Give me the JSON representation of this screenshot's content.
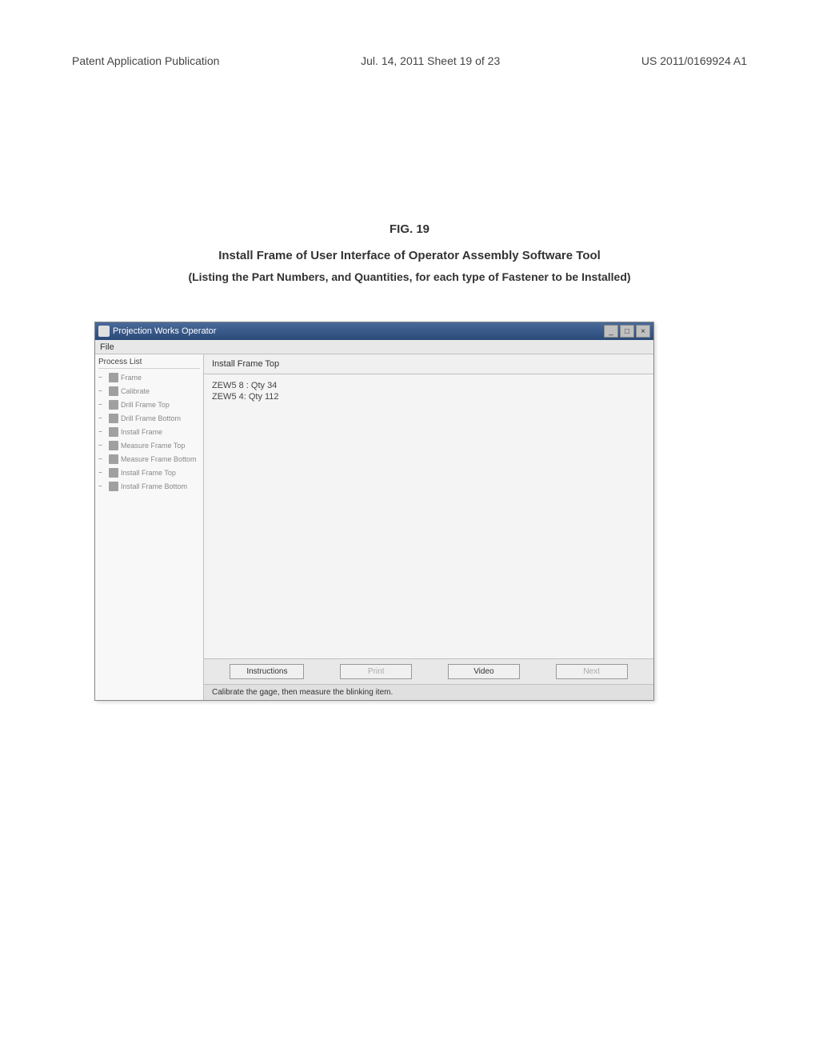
{
  "page_header": {
    "left": "Patent Application Publication",
    "center": "Jul. 14, 2011  Sheet 19 of 23",
    "right": "US 2011/0169924 A1"
  },
  "figure": {
    "number": "FIG. 19",
    "title": "Install Frame of User Interface of Operator Assembly Software Tool",
    "subtitle": "(Listing the Part Numbers, and Quantities, for each type of Fastener to be Installed)"
  },
  "window": {
    "title": "Projection Works Operator",
    "title_bar_bg_start": "#4a6a9a",
    "title_bar_bg_end": "#2a4a7a",
    "window_bg": "#f0f0f0",
    "border_color": "#888888"
  },
  "menu": {
    "file": "File"
  },
  "sidebar": {
    "header": "Process List",
    "items": [
      {
        "expand": "−",
        "step": "",
        "label": "Frame"
      },
      {
        "expand": "−",
        "step": "",
        "label": "Calibrate"
      },
      {
        "expand": "−",
        "step": "",
        "label": "Drill Frame Top"
      },
      {
        "expand": "−",
        "step": "",
        "label": "Drill Frame Bottom"
      },
      {
        "expand": "−",
        "step": "",
        "label": "Install Frame"
      },
      {
        "expand": "−",
        "step": "",
        "label": "Measure Frame Top"
      },
      {
        "expand": "−",
        "step": "",
        "label": "Measure Frame Bottom"
      },
      {
        "expand": "−",
        "step": "",
        "label": "Install Frame Top"
      },
      {
        "expand": "−",
        "step": "",
        "label": "Install Frame Bottom"
      }
    ]
  },
  "content": {
    "header": "Install Frame Top",
    "parts": [
      "ZEW5 8 : Qty 34",
      "ZEW5 4: Qty 112"
    ]
  },
  "buttons": {
    "instructions": "Instructions",
    "print": "Print",
    "video": "Video",
    "next": "Next"
  },
  "status_bar": {
    "text": "Calibrate the gage, then measure the blinking item."
  },
  "colors": {
    "page_bg": "#ffffff",
    "text": "#333333",
    "sidebar_bg": "#f8f8f8",
    "button_bg": "#f0f0f0",
    "status_bg": "#e0e0e0"
  }
}
